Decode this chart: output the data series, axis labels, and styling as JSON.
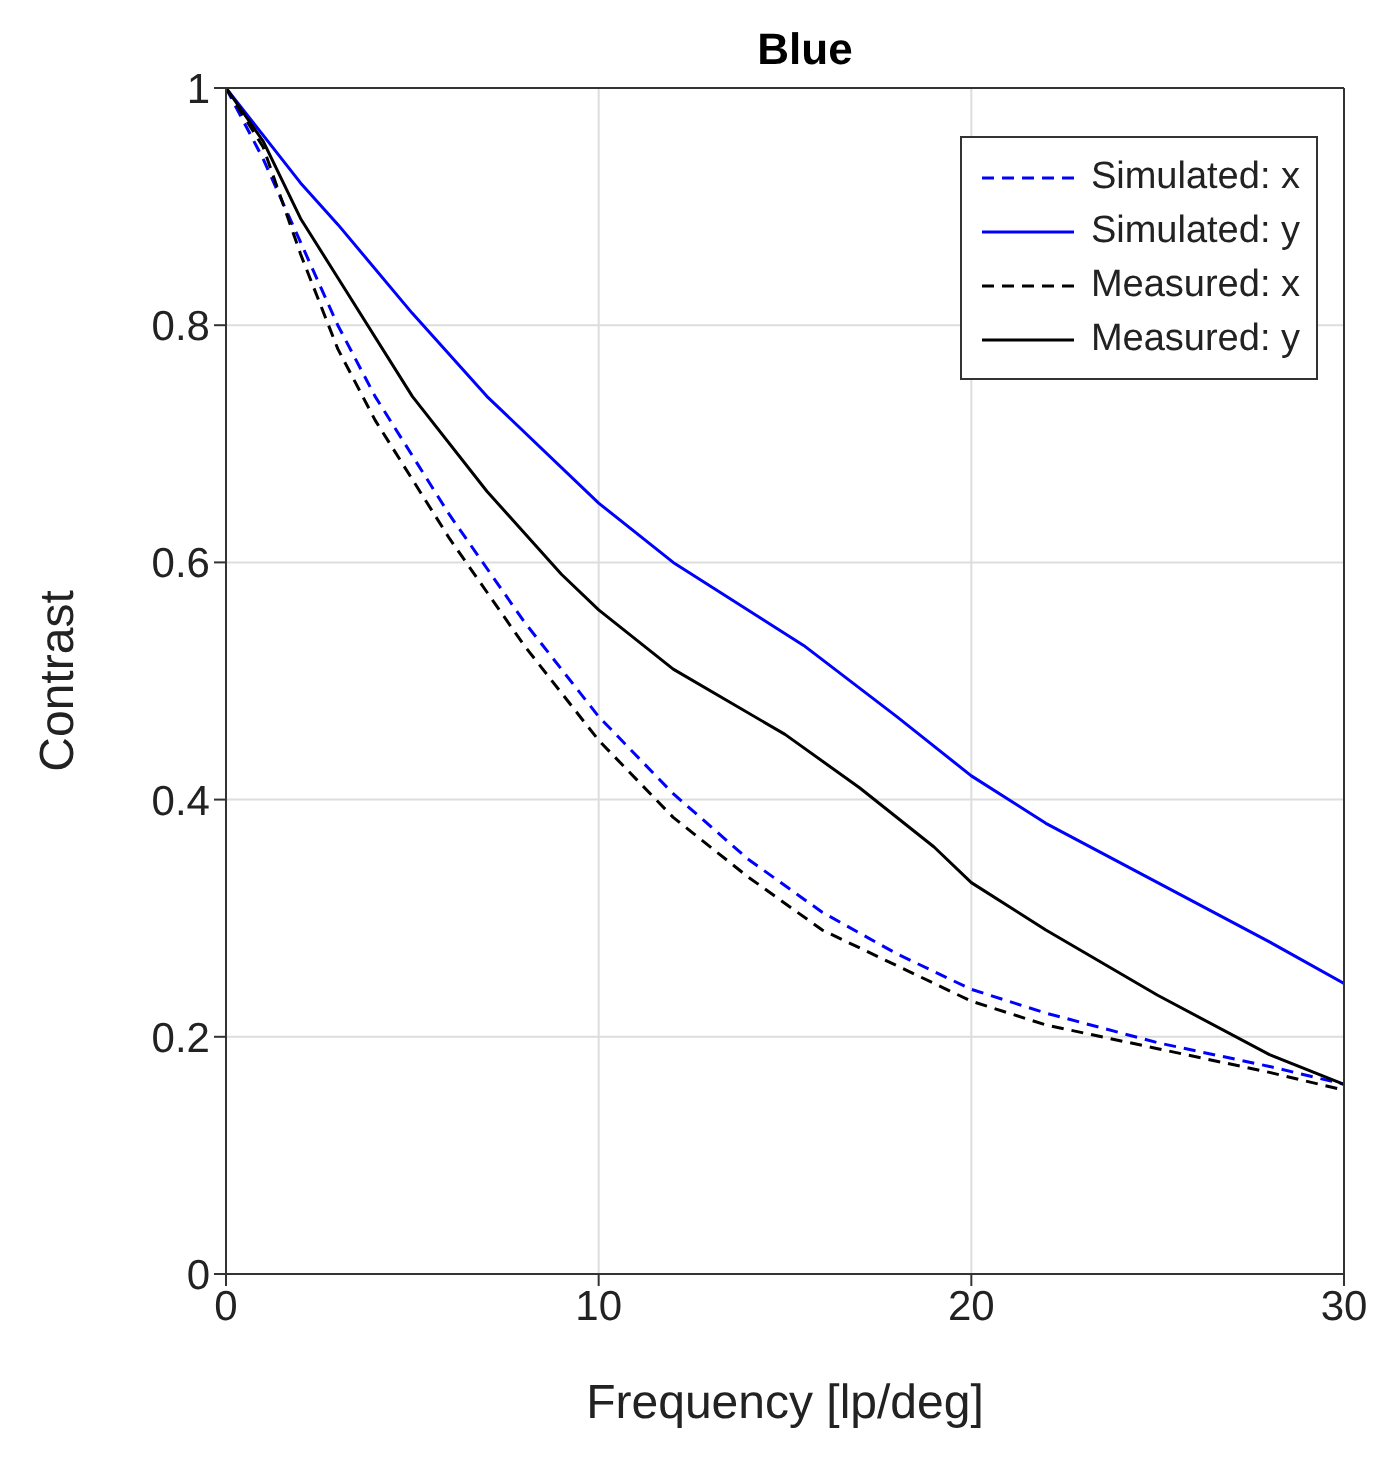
{
  "chart_data": {
    "type": "line",
    "title": "Blue",
    "xlabel": "Frequency [lp/deg]",
    "ylabel": "Contrast",
    "xlim": [
      0,
      30
    ],
    "ylim": [
      0,
      1
    ],
    "xticks": [
      0,
      10,
      20,
      30
    ],
    "yticks": [
      0,
      0.2,
      0.4,
      0.6,
      0.8,
      1
    ],
    "grid": true,
    "legend": "top right",
    "marker": "none",
    "series": [
      {
        "name": "Simulated: x",
        "color": "#0000ff",
        "line_style": "dashed",
        "x": [
          0,
          1,
          2,
          3,
          4,
          5,
          6,
          8,
          10,
          12,
          14,
          16,
          18,
          20,
          22,
          25,
          28,
          30
        ],
        "values": [
          1,
          0.94,
          0.87,
          0.8,
          0.74,
          0.69,
          0.64,
          0.55,
          0.47,
          0.405,
          0.35,
          0.305,
          0.27,
          0.24,
          0.22,
          0.195,
          0.175,
          0.16
        ]
      },
      {
        "name": "Simulated: y",
        "color": "#0000ff",
        "line_style": "solid",
        "x": [
          0,
          1,
          2,
          3,
          5,
          7,
          10,
          12,
          15.5,
          18,
          20,
          22,
          25,
          28,
          30
        ],
        "values": [
          1,
          0.96,
          0.92,
          0.885,
          0.81,
          0.74,
          0.65,
          0.6,
          0.53,
          0.47,
          0.42,
          0.38,
          0.33,
          0.28,
          0.245
        ]
      },
      {
        "name": "Measured: x",
        "color": "#000000",
        "line_style": "dashed",
        "x": [
          0,
          1,
          2,
          3,
          4,
          5,
          6,
          8,
          10,
          12,
          14,
          16,
          18,
          20,
          22,
          25,
          28,
          30
        ],
        "values": [
          1,
          0.95,
          0.86,
          0.78,
          0.72,
          0.67,
          0.62,
          0.53,
          0.45,
          0.385,
          0.335,
          0.29,
          0.26,
          0.23,
          0.21,
          0.19,
          0.17,
          0.155
        ]
      },
      {
        "name": "Measured: y",
        "color": "#000000",
        "line_style": "solid",
        "x": [
          0,
          1,
          2,
          3,
          5,
          7,
          9,
          10,
          12,
          15,
          17,
          19,
          20,
          22,
          25,
          28,
          30
        ],
        "values": [
          1,
          0.955,
          0.89,
          0.84,
          0.74,
          0.66,
          0.59,
          0.56,
          0.51,
          0.455,
          0.41,
          0.36,
          0.33,
          0.29,
          0.235,
          0.185,
          0.16
        ]
      }
    ]
  }
}
